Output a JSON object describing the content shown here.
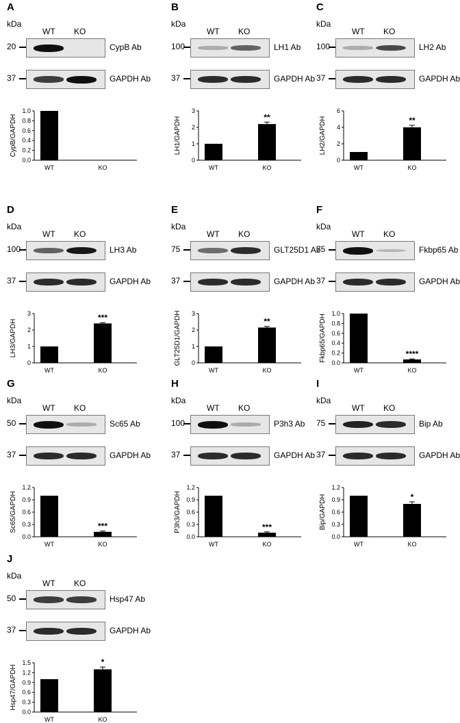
{
  "panels": [
    {
      "label": "A",
      "kda": "kDa",
      "lanes": [
        "WT",
        "KO"
      ],
      "target": {
        "mw": "20",
        "ab": "CypB Ab",
        "wt": 1.0,
        "ko": 0.0
      },
      "control": {
        "mw": "37",
        "ab": "GAPDH Ab",
        "wt": 0.75,
        "ko": 1.0
      }
    },
    {
      "label": "B",
      "kda": "kDa",
      "lanes": [
        "WT",
        "KO"
      ],
      "target": {
        "mw": "100",
        "ab": "LH1 Ab",
        "wt": 0.15,
        "ko": 0.55
      },
      "control": {
        "mw": "37",
        "ab": "GAPDH Ab",
        "wt": 0.85,
        "ko": 0.85
      }
    },
    {
      "label": "C",
      "kda": "kDa",
      "lanes": [
        "WT",
        "KO"
      ],
      "target": {
        "mw": "100",
        "ab": "LH2 Ab",
        "wt": 0.15,
        "ko": 0.7
      },
      "control": {
        "mw": "37",
        "ab": "GAPDH Ab",
        "wt": 0.85,
        "ko": 0.85
      }
    },
    {
      "label": "D",
      "kda": "kDa",
      "lanes": [
        "WT",
        "KO"
      ],
      "target": {
        "mw": "100",
        "ab": "LH3 Ab",
        "wt": 0.55,
        "ko": 0.95
      },
      "control": {
        "mw": "37",
        "ab": "GAPDH Ab",
        "wt": 0.85,
        "ko": 0.85
      }
    },
    {
      "label": "E",
      "kda": "kDa",
      "lanes": [
        "WT",
        "KO"
      ],
      "target": {
        "mw": "75",
        "ab": "GLT25D1 Ab",
        "wt": 0.5,
        "ko": 0.85
      },
      "control": {
        "mw": "37",
        "ab": "GAPDH Ab",
        "wt": 0.85,
        "ko": 0.85
      }
    },
    {
      "label": "F",
      "kda": "kDa",
      "lanes": [
        "WT",
        "KO"
      ],
      "target": {
        "mw": "75",
        "ab": "Fkbp65 Ab",
        "wt": 1.0,
        "ko": 0.1
      },
      "control": {
        "mw": "37",
        "ab": "GAPDH Ab",
        "wt": 0.85,
        "ko": 0.85
      }
    },
    {
      "label": "G",
      "kda": "kDa",
      "lanes": [
        "WT",
        "KO"
      ],
      "target": {
        "mw": "50",
        "ab": "Sc65 Ab",
        "wt": 1.0,
        "ko": 0.15
      },
      "control": {
        "mw": "37",
        "ab": "GAPDH Ab",
        "wt": 0.85,
        "ko": 0.85
      }
    },
    {
      "label": "H",
      "kda": "kDa",
      "lanes": [
        "WT",
        "KO"
      ],
      "target": {
        "mw": "100",
        "ab": "P3h3 Ab",
        "wt": 1.0,
        "ko": 0.15
      },
      "control": {
        "mw": "37",
        "ab": "GAPDH Ab",
        "wt": 0.85,
        "ko": 0.85
      }
    },
    {
      "label": "I",
      "kda": "kDa",
      "lanes": [
        "WT",
        "KO"
      ],
      "target": {
        "mw": "75",
        "ab": "Bip Ab",
        "wt": 0.9,
        "ko": 0.85
      },
      "control": {
        "mw": "37",
        "ab": "GAPDH Ab",
        "wt": 0.85,
        "ko": 0.85
      }
    },
    {
      "label": "J",
      "kda": "kDa",
      "lanes": [
        "WT",
        "KO"
      ],
      "target": {
        "mw": "50",
        "ab": "Hsp47 Ab",
        "wt": 0.75,
        "ko": 0.75
      },
      "control": {
        "mw": "37",
        "ab": "GAPDH Ab",
        "wt": 0.85,
        "ko": 0.85
      }
    }
  ],
  "chart_data": [
    {
      "panel": "A",
      "type": "bar",
      "categories": [
        "WT",
        "KO"
      ],
      "values": [
        1.0,
        0.0
      ],
      "errors": [
        0,
        0
      ],
      "ylabel": "CypB/GAPDH",
      "ylim": [
        0,
        1.0
      ],
      "yticks": [
        "0.0",
        "0.2",
        "0.4",
        "0.6",
        "0.8",
        "1.0"
      ],
      "significance": [
        "",
        ""
      ]
    },
    {
      "panel": "B",
      "type": "bar",
      "categories": [
        "WT",
        "KO"
      ],
      "values": [
        1.0,
        2.2
      ],
      "errors": [
        0,
        0.12
      ],
      "ylabel": "LH1/GAPDH",
      "ylim": [
        0,
        3
      ],
      "yticks": [
        "0",
        "1",
        "2",
        "3"
      ],
      "significance": [
        "",
        "**"
      ]
    },
    {
      "panel": "C",
      "type": "bar",
      "categories": [
        "WT",
        "KO"
      ],
      "values": [
        1.0,
        4.0
      ],
      "errors": [
        0,
        0.25
      ],
      "ylabel": "LH2/GAPDH",
      "ylim": [
        0,
        6
      ],
      "yticks": [
        "0",
        "2",
        "4",
        "6"
      ],
      "significance": [
        "",
        "**"
      ]
    },
    {
      "panel": "D",
      "type": "bar",
      "categories": [
        "WT",
        "KO"
      ],
      "values": [
        1.0,
        2.4
      ],
      "errors": [
        0,
        0.05
      ],
      "ylabel": "LH3/GAPDH",
      "ylim": [
        0,
        3
      ],
      "yticks": [
        "0",
        "1",
        "2",
        "3"
      ],
      "significance": [
        "",
        "***"
      ]
    },
    {
      "panel": "E",
      "type": "bar",
      "categories": [
        "WT",
        "KO"
      ],
      "values": [
        1.0,
        2.15
      ],
      "errors": [
        0,
        0.07
      ],
      "ylabel": "GLT25D1/GAPDH",
      "ylim": [
        0,
        3
      ],
      "yticks": [
        "0",
        "1",
        "2",
        "3"
      ],
      "significance": [
        "",
        "**"
      ]
    },
    {
      "panel": "F",
      "type": "bar",
      "categories": [
        "WT",
        "KO"
      ],
      "values": [
        1.0,
        0.07
      ],
      "errors": [
        0,
        0.01
      ],
      "ylabel": "Fkbp65/GAPDH",
      "ylim": [
        0,
        1.0
      ],
      "yticks": [
        "0.0",
        "0.2",
        "0.4",
        "0.6",
        "0.8",
        "1.0"
      ],
      "significance": [
        "",
        "****"
      ]
    },
    {
      "panel": "G",
      "type": "bar",
      "categories": [
        "WT",
        "KO"
      ],
      "values": [
        1.0,
        0.12
      ],
      "errors": [
        0,
        0.02
      ],
      "ylabel": "Sc65/GAPDH",
      "ylim": [
        0,
        1.2
      ],
      "yticks": [
        "0.0",
        "0.3",
        "0.6",
        "0.9",
        "1.2"
      ],
      "significance": [
        "",
        "***"
      ]
    },
    {
      "panel": "H",
      "type": "bar",
      "categories": [
        "WT",
        "KO"
      ],
      "values": [
        1.0,
        0.1
      ],
      "errors": [
        0,
        0.02
      ],
      "ylabel": "P3h3/GAPDH",
      "ylim": [
        0,
        1.2
      ],
      "yticks": [
        "0.0",
        "0.3",
        "0.6",
        "0.9",
        "1.2"
      ],
      "significance": [
        "",
        "***"
      ]
    },
    {
      "panel": "I",
      "type": "bar",
      "categories": [
        "WT",
        "KO"
      ],
      "values": [
        1.0,
        0.8
      ],
      "errors": [
        0,
        0.05
      ],
      "ylabel": "Bip/GAPDH",
      "ylim": [
        0,
        1.2
      ],
      "yticks": [
        "0.0",
        "0.3",
        "0.6",
        "0.9",
        "1.2"
      ],
      "significance": [
        "",
        "*"
      ]
    },
    {
      "panel": "J",
      "type": "bar",
      "categories": [
        "WT",
        "KO"
      ],
      "values": [
        1.0,
        1.3
      ],
      "errors": [
        0,
        0.07
      ],
      "ylabel": "Hsp47/GAPDH",
      "ylim": [
        0,
        1.5
      ],
      "yticks": [
        "0.0",
        "0.3",
        "0.6",
        "0.9",
        "1.2",
        "1.5"
      ],
      "significance": [
        "",
        "*"
      ]
    }
  ]
}
